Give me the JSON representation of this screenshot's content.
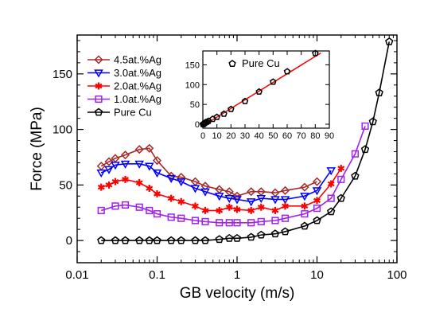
{
  "chart_data": [
    {
      "type": "line",
      "xlabel": "GB velocity (m/s)",
      "ylabel": "Force (MPa)",
      "xscale": "log",
      "xlim": [
        0.01,
        100
      ],
      "ylim": [
        -20,
        185
      ],
      "xticks": [
        0.01,
        0.1,
        1,
        10,
        100
      ],
      "xtick_labels": [
        "0.01",
        "0.1",
        "1",
        "10",
        "100"
      ],
      "yticks": [
        0,
        50,
        100,
        150
      ],
      "ytick_labels": [
        "0",
        "50",
        "100",
        "150"
      ],
      "legend_position": "top-left",
      "grid": false,
      "series": [
        {
          "name": "4.5at.%Ag",
          "color": "#a52a2a",
          "marker": "diamond",
          "x": [
            0.02,
            0.025,
            0.03,
            0.04,
            0.06,
            0.08,
            0.1,
            0.15,
            0.2,
            0.3,
            0.4,
            0.6,
            0.8,
            1.0,
            1.5,
            2.0,
            3.0,
            4.0,
            7.0,
            10.0
          ],
          "y": [
            67,
            71,
            74,
            77,
            82,
            83,
            72,
            58,
            57,
            53,
            49,
            46,
            44,
            40,
            44,
            44,
            43,
            45,
            48,
            53
          ]
        },
        {
          "name": "3.0at.%Ag",
          "color": "#0000ff",
          "marker": "triangle-down",
          "x": [
            0.02,
            0.025,
            0.03,
            0.04,
            0.06,
            0.08,
            0.1,
            0.15,
            0.2,
            0.3,
            0.4,
            0.6,
            0.8,
            1.0,
            1.5,
            2.0,
            3.0,
            4.0,
            7.0,
            10.0,
            15.0
          ],
          "y": [
            61,
            64,
            68,
            69,
            69,
            67,
            61,
            56,
            53,
            47,
            44,
            40,
            38,
            37,
            35,
            38,
            37,
            37,
            40,
            45,
            63
          ]
        },
        {
          "name": "2.0at.%Ag",
          "color": "#ff0000",
          "marker": "asterisk",
          "x": [
            0.02,
            0.025,
            0.03,
            0.04,
            0.06,
            0.08,
            0.1,
            0.15,
            0.2,
            0.3,
            0.4,
            0.6,
            0.8,
            1.0,
            1.5,
            2.0,
            3.0,
            4.0,
            7.0,
            10.0,
            15.0,
            20.0
          ],
          "y": [
            48,
            50,
            53,
            55,
            52,
            47,
            42,
            38,
            35,
            31,
            27,
            27,
            30,
            28,
            27,
            30,
            27,
            31,
            31,
            36,
            51,
            65
          ]
        },
        {
          "name": "1.0at.%Ag",
          "color": "#a020f0",
          "marker": "square",
          "x": [
            0.02,
            0.03,
            0.04,
            0.06,
            0.08,
            0.1,
            0.15,
            0.2,
            0.3,
            0.4,
            0.6,
            0.8,
            1.0,
            1.5,
            2.0,
            3.0,
            4.0,
            7.0,
            10.0,
            15.0,
            20.0,
            30.0,
            40.0
          ],
          "y": [
            27,
            31,
            32,
            30,
            27,
            24,
            21,
            20,
            18,
            17,
            16,
            16,
            16,
            16,
            17,
            18,
            20,
            24,
            29,
            38,
            55,
            78,
            103
          ]
        },
        {
          "name": "Pure Cu",
          "color": "#000000",
          "marker": "pentagon",
          "x": [
            0.02,
            0.03,
            0.04,
            0.06,
            0.08,
            0.1,
            0.15,
            0.2,
            0.3,
            0.4,
            0.6,
            0.8,
            1.0,
            1.5,
            2.0,
            3.0,
            4.0,
            7.0,
            10.0,
            15.0,
            20.0,
            30.0,
            40.0,
            50.0,
            60.0,
            80.0
          ],
          "y": [
            0,
            0,
            0,
            0,
            0,
            0,
            0,
            0,
            0,
            0,
            1,
            2,
            2,
            3,
            5,
            6,
            8,
            13,
            18,
            26,
            38,
            58,
            82,
            107,
            133,
            179
          ]
        }
      ]
    },
    {
      "type": "scatter",
      "xlim": [
        0,
        90
      ],
      "ylim": [
        -10,
        185
      ],
      "xticks": [
        0,
        10,
        20,
        30,
        40,
        50,
        60,
        70,
        80,
        90
      ],
      "xtick_labels": [
        "0",
        "10",
        "20",
        "30",
        "40",
        "50",
        "60",
        "70",
        "80",
        "90"
      ],
      "yticks": [
        0,
        50,
        100,
        150
      ],
      "ytick_labels": [
        "0",
        "50",
        "100",
        "150"
      ],
      "fit_line": {
        "color": "#ff0000",
        "x": [
          0,
          84
        ],
        "y": [
          -4,
          180
        ]
      },
      "series": [
        {
          "name": "Pure Cu",
          "color": "#000000",
          "marker": "pentagon",
          "x": [
            0.02,
            0.2,
            0.5,
            1,
            1.5,
            2,
            3,
            4,
            7,
            10,
            15,
            20,
            30,
            40,
            50,
            60,
            80
          ],
          "y": [
            0,
            0,
            0,
            2,
            3,
            5,
            6,
            8,
            13,
            18,
            26,
            38,
            58,
            82,
            107,
            133,
            179
          ]
        }
      ]
    }
  ]
}
